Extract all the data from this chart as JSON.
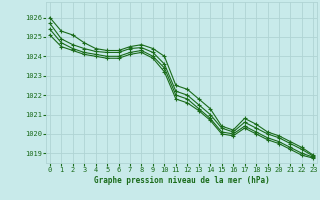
{
  "title": "Graphe pression niveau de la mer (hPa)",
  "background_color": "#c8eaea",
  "grid_color": "#b0d4d4",
  "line_color": "#1a6b1a",
  "x_ticks": [
    0,
    1,
    2,
    3,
    4,
    5,
    6,
    7,
    8,
    9,
    10,
    11,
    12,
    13,
    14,
    15,
    16,
    17,
    18,
    19,
    20,
    21,
    22,
    23
  ],
  "y_ticks": [
    1019,
    1020,
    1021,
    1022,
    1023,
    1024,
    1025,
    1026
  ],
  "ylim": [
    1018.5,
    1026.8
  ],
  "xlim": [
    -0.3,
    23.3
  ],
  "lines": [
    [
      1026.0,
      1025.3,
      1025.1,
      1024.7,
      1024.4,
      1024.3,
      1024.3,
      1024.5,
      1024.6,
      1024.4,
      1024.0,
      1022.5,
      1022.3,
      1021.8,
      1021.3,
      1020.4,
      1020.2,
      1020.8,
      1020.5,
      1020.1,
      1019.9,
      1019.6,
      1019.3,
      1018.9
    ],
    [
      1025.7,
      1024.9,
      1024.6,
      1024.4,
      1024.25,
      1024.2,
      1024.2,
      1024.4,
      1024.45,
      1024.2,
      1023.6,
      1022.2,
      1022.0,
      1021.5,
      1021.0,
      1020.3,
      1020.1,
      1020.6,
      1020.3,
      1020.0,
      1019.8,
      1019.5,
      1019.2,
      1018.85
    ],
    [
      1025.4,
      1024.7,
      1024.4,
      1024.2,
      1024.1,
      1024.0,
      1024.0,
      1024.2,
      1024.3,
      1024.0,
      1023.4,
      1022.0,
      1021.8,
      1021.3,
      1020.8,
      1020.1,
      1020.0,
      1020.4,
      1020.1,
      1019.8,
      1019.6,
      1019.3,
      1019.0,
      1018.8
    ],
    [
      1025.1,
      1024.5,
      1024.3,
      1024.1,
      1024.0,
      1023.9,
      1023.9,
      1024.1,
      1024.2,
      1023.9,
      1023.2,
      1021.8,
      1021.6,
      1021.2,
      1020.7,
      1020.0,
      1019.9,
      1020.3,
      1020.0,
      1019.7,
      1019.5,
      1019.2,
      1018.9,
      1018.75
    ]
  ]
}
